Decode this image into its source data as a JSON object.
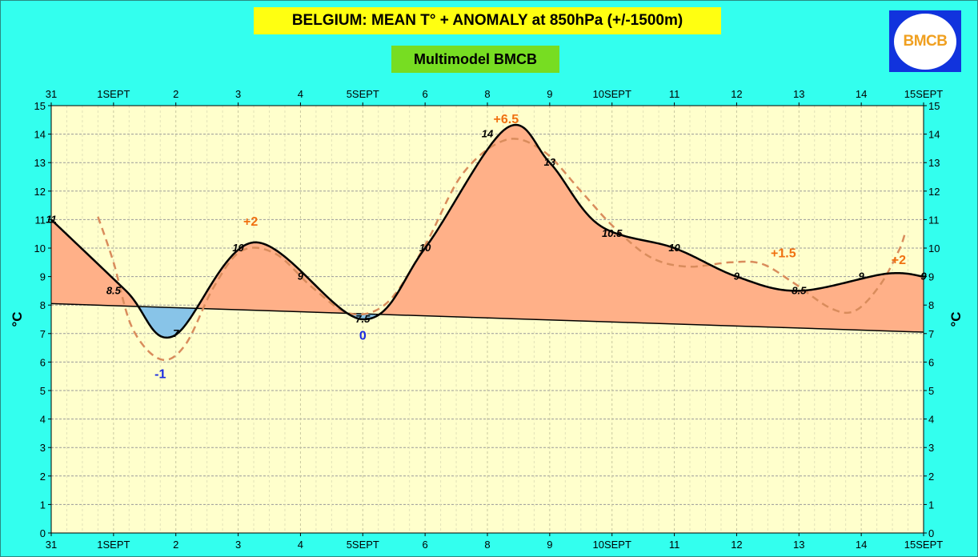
{
  "header": {
    "title": "BELGIUM:  MEAN T° + ANOMALY at 850hPa (+/-1500m)",
    "subtitle": "Multimodel BMCB",
    "logo_text": "BMCB"
  },
  "colors": {
    "background": "#33ffee",
    "plot_area": "#ffffcc",
    "warm_fill": "#ffb088",
    "cold_fill": "#88c4e8",
    "title_bg": "#ffff11",
    "subtitle_bg": "#77dd22",
    "main_line": "#000000",
    "dashed_line": "#d98c5c",
    "anomaly_warm": "#f07010",
    "anomaly_cold": "#1a2be0"
  },
  "chart_data": {
    "type": "area",
    "ylabel_left": "°C",
    "ylabel_right": "°C",
    "ylim": [
      0,
      15
    ],
    "y_ticks": [
      0,
      1,
      2,
      3,
      4,
      5,
      6,
      7,
      8,
      9,
      10,
      11,
      12,
      13,
      14,
      15
    ],
    "x_ticks": [
      {
        "x": 0,
        "label": "31"
      },
      {
        "x": 1,
        "label": "1SEPT"
      },
      {
        "x": 2,
        "label": "2"
      },
      {
        "x": 3,
        "label": "3"
      },
      {
        "x": 4,
        "label": "4"
      },
      {
        "x": 5,
        "label": "5SEPT"
      },
      {
        "x": 6,
        "label": "6"
      },
      {
        "x": 7,
        "label": "8"
      },
      {
        "x": 8,
        "label": "9"
      },
      {
        "x": 9,
        "label": "10SEPT"
      },
      {
        "x": 10,
        "label": "11"
      },
      {
        "x": 11,
        "label": "12"
      },
      {
        "x": 12,
        "label": "13"
      },
      {
        "x": 13,
        "label": "14"
      },
      {
        "x": 14,
        "label": "15SEPT"
      }
    ],
    "xlim": [
      0,
      14
    ],
    "grid": true,
    "mean_temperature": [
      {
        "x": 0,
        "y": 11
      },
      {
        "x": 1.2,
        "y": 8.5
      },
      {
        "x": 1.95,
        "y": 6.9
      },
      {
        "x": 3.25,
        "y": 10.2
      },
      {
        "x": 5,
        "y": 7.5
      },
      {
        "x": 6,
        "y": 10
      },
      {
        "x": 7.3,
        "y": 14.2
      },
      {
        "x": 8,
        "y": 13
      },
      {
        "x": 8.8,
        "y": 10.8
      },
      {
        "x": 10,
        "y": 10
      },
      {
        "x": 11,
        "y": 9
      },
      {
        "x": 12,
        "y": 8.5
      },
      {
        "x": 13.4,
        "y": 9.1
      },
      {
        "x": 14,
        "y": 9
      }
    ],
    "normal_baseline": [
      {
        "x": 0,
        "y": 8.05
      },
      {
        "x": 14,
        "y": 7.05
      }
    ],
    "trend_dashed": [
      {
        "x": 0.75,
        "y": 11.1
      },
      {
        "x": 1,
        "y": 9.5
      },
      {
        "x": 1.3,
        "y": 7.2
      },
      {
        "x": 1.75,
        "y": 6.1
      },
      {
        "x": 2.15,
        "y": 6.6
      },
      {
        "x": 2.6,
        "y": 8.6
      },
      {
        "x": 3.05,
        "y": 9.9
      },
      {
        "x": 3.6,
        "y": 9.8
      },
      {
        "x": 4.2,
        "y": 8.6
      },
      {
        "x": 4.8,
        "y": 7.7
      },
      {
        "x": 5.4,
        "y": 8.1
      },
      {
        "x": 6,
        "y": 10.1
      },
      {
        "x": 6.6,
        "y": 12.6
      },
      {
        "x": 7.3,
        "y": 13.8
      },
      {
        "x": 7.9,
        "y": 13.4
      },
      {
        "x": 8.5,
        "y": 12
      },
      {
        "x": 9,
        "y": 10.8
      },
      {
        "x": 9.6,
        "y": 9.7
      },
      {
        "x": 10.2,
        "y": 9.35
      },
      {
        "x": 10.9,
        "y": 9.5
      },
      {
        "x": 11.4,
        "y": 9.45
      },
      {
        "x": 11.9,
        "y": 8.8
      },
      {
        "x": 12.5,
        "y": 7.9
      },
      {
        "x": 12.9,
        "y": 7.8
      },
      {
        "x": 13.3,
        "y": 8.7
      },
      {
        "x": 13.6,
        "y": 9.9
      },
      {
        "x": 13.7,
        "y": 10.5
      }
    ],
    "point_labels": [
      {
        "x": 0,
        "y": 11,
        "text": "11"
      },
      {
        "x": 1,
        "y": 8.5,
        "text": "8.5"
      },
      {
        "x": 2,
        "y": 7,
        "text": "7"
      },
      {
        "x": 3,
        "y": 10,
        "text": "10"
      },
      {
        "x": 4,
        "y": 9,
        "text": "9"
      },
      {
        "x": 5,
        "y": 7.5,
        "text": "7.5"
      },
      {
        "x": 6,
        "y": 10,
        "text": "10"
      },
      {
        "x": 7,
        "y": 14,
        "text": "14"
      },
      {
        "x": 8,
        "y": 13,
        "text": "13"
      },
      {
        "x": 9,
        "y": 10.5,
        "text": "10.5"
      },
      {
        "x": 10,
        "y": 10,
        "text": "10"
      },
      {
        "x": 11,
        "y": 9,
        "text": "9"
      },
      {
        "x": 12,
        "y": 8.5,
        "text": "8.5"
      },
      {
        "x": 13,
        "y": 9,
        "text": "9"
      },
      {
        "x": 14,
        "y": 9,
        "text": "9"
      }
    ],
    "anomaly_labels": [
      {
        "x": 1.75,
        "y": 5.6,
        "text": "-1",
        "kind": "cold"
      },
      {
        "x": 3.2,
        "y": 10.95,
        "text": "+2",
        "kind": "warm"
      },
      {
        "x": 5,
        "y": 6.95,
        "text": "0",
        "kind": "cold"
      },
      {
        "x": 7.3,
        "y": 14.55,
        "text": "+6.5",
        "kind": "warm"
      },
      {
        "x": 11.75,
        "y": 9.85,
        "text": "+1.5",
        "kind": "warm"
      },
      {
        "x": 13.6,
        "y": 9.6,
        "text": "+2",
        "kind": "warm"
      }
    ]
  }
}
